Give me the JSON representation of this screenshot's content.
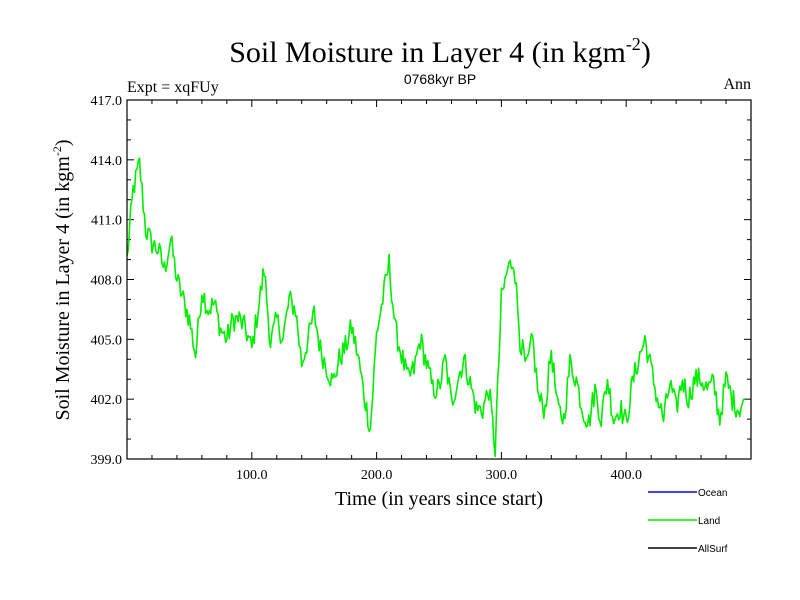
{
  "chart_data": {
    "type": "line",
    "title_main": "Soil Moisture in Layer 4 (in kgm",
    "title_sup": "-2",
    "title_close": ")",
    "subtitle_left": "Expt = xqFUy",
    "subtitle_center": "0768kyr BP",
    "subtitle_right": "Ann",
    "xlabel": "Time (in years since start)",
    "ylabel_main": "Soil Moisture in Layer 4 (in kgm",
    "ylabel_sup": "-2",
    "ylabel_close": ")",
    "xlim": [
      0,
      500
    ],
    "ylim": [
      399.0,
      417.0
    ],
    "x_ticks": [
      100,
      200,
      300,
      400
    ],
    "x_tick_labels": [
      "100.0",
      "200.0",
      "300.0",
      "400.0"
    ],
    "y_ticks": [
      399,
      402,
      405,
      408,
      411,
      414,
      417
    ],
    "y_tick_labels": [
      "399.0",
      "402.0",
      "405.0",
      "408.0",
      "411.0",
      "414.0",
      "417.0"
    ],
    "legend": [
      {
        "name": "Ocean",
        "color": "#0000ff"
      },
      {
        "name": "Land",
        "color": "#00ee00"
      },
      {
        "name": "AllSurf",
        "color": "#000000"
      }
    ],
    "series": [
      {
        "name": "Land",
        "color": "#00ee00",
        "x_start": 0,
        "x_step": 5,
        "values": [
          409.0,
          412.5,
          413.8,
          410.5,
          409.8,
          409.5,
          408.5,
          410.0,
          408.0,
          407.0,
          406.0,
          404.2,
          407.5,
          406.5,
          406.8,
          405.5,
          405.0,
          406.0,
          406.0,
          405.5,
          404.5,
          406.5,
          408.5,
          404.8,
          406.0,
          405.0,
          407.0,
          406.5,
          403.8,
          405.0,
          406.3,
          404.5,
          403.6,
          402.8,
          404.0,
          404.6,
          405.6,
          404.2,
          402.2,
          400.5,
          405.3,
          407.0,
          408.8,
          405.5,
          404.2,
          403.0,
          403.5,
          405.0,
          403.8,
          402.5,
          402.5,
          404.0,
          401.8,
          403.0,
          404.0,
          402.8,
          401.5,
          401.5,
          402.5,
          399.5,
          407.0,
          408.5,
          409.0,
          405.0,
          403.5,
          405.0,
          402.0,
          401.5,
          404.5,
          401.5,
          401.0,
          403.8,
          403.0,
          401.5,
          400.8,
          402.5,
          401.0,
          403.0,
          401.0,
          401.6,
          400.8,
          402.8,
          404.0,
          405.0,
          403.5,
          402.0,
          401.0,
          402.8,
          401.5,
          403.0,
          402.0,
          403.0,
          403.0,
          402.5,
          402.8,
          401.0,
          403.0,
          402.0,
          401.5,
          402.0
        ]
      }
    ]
  }
}
